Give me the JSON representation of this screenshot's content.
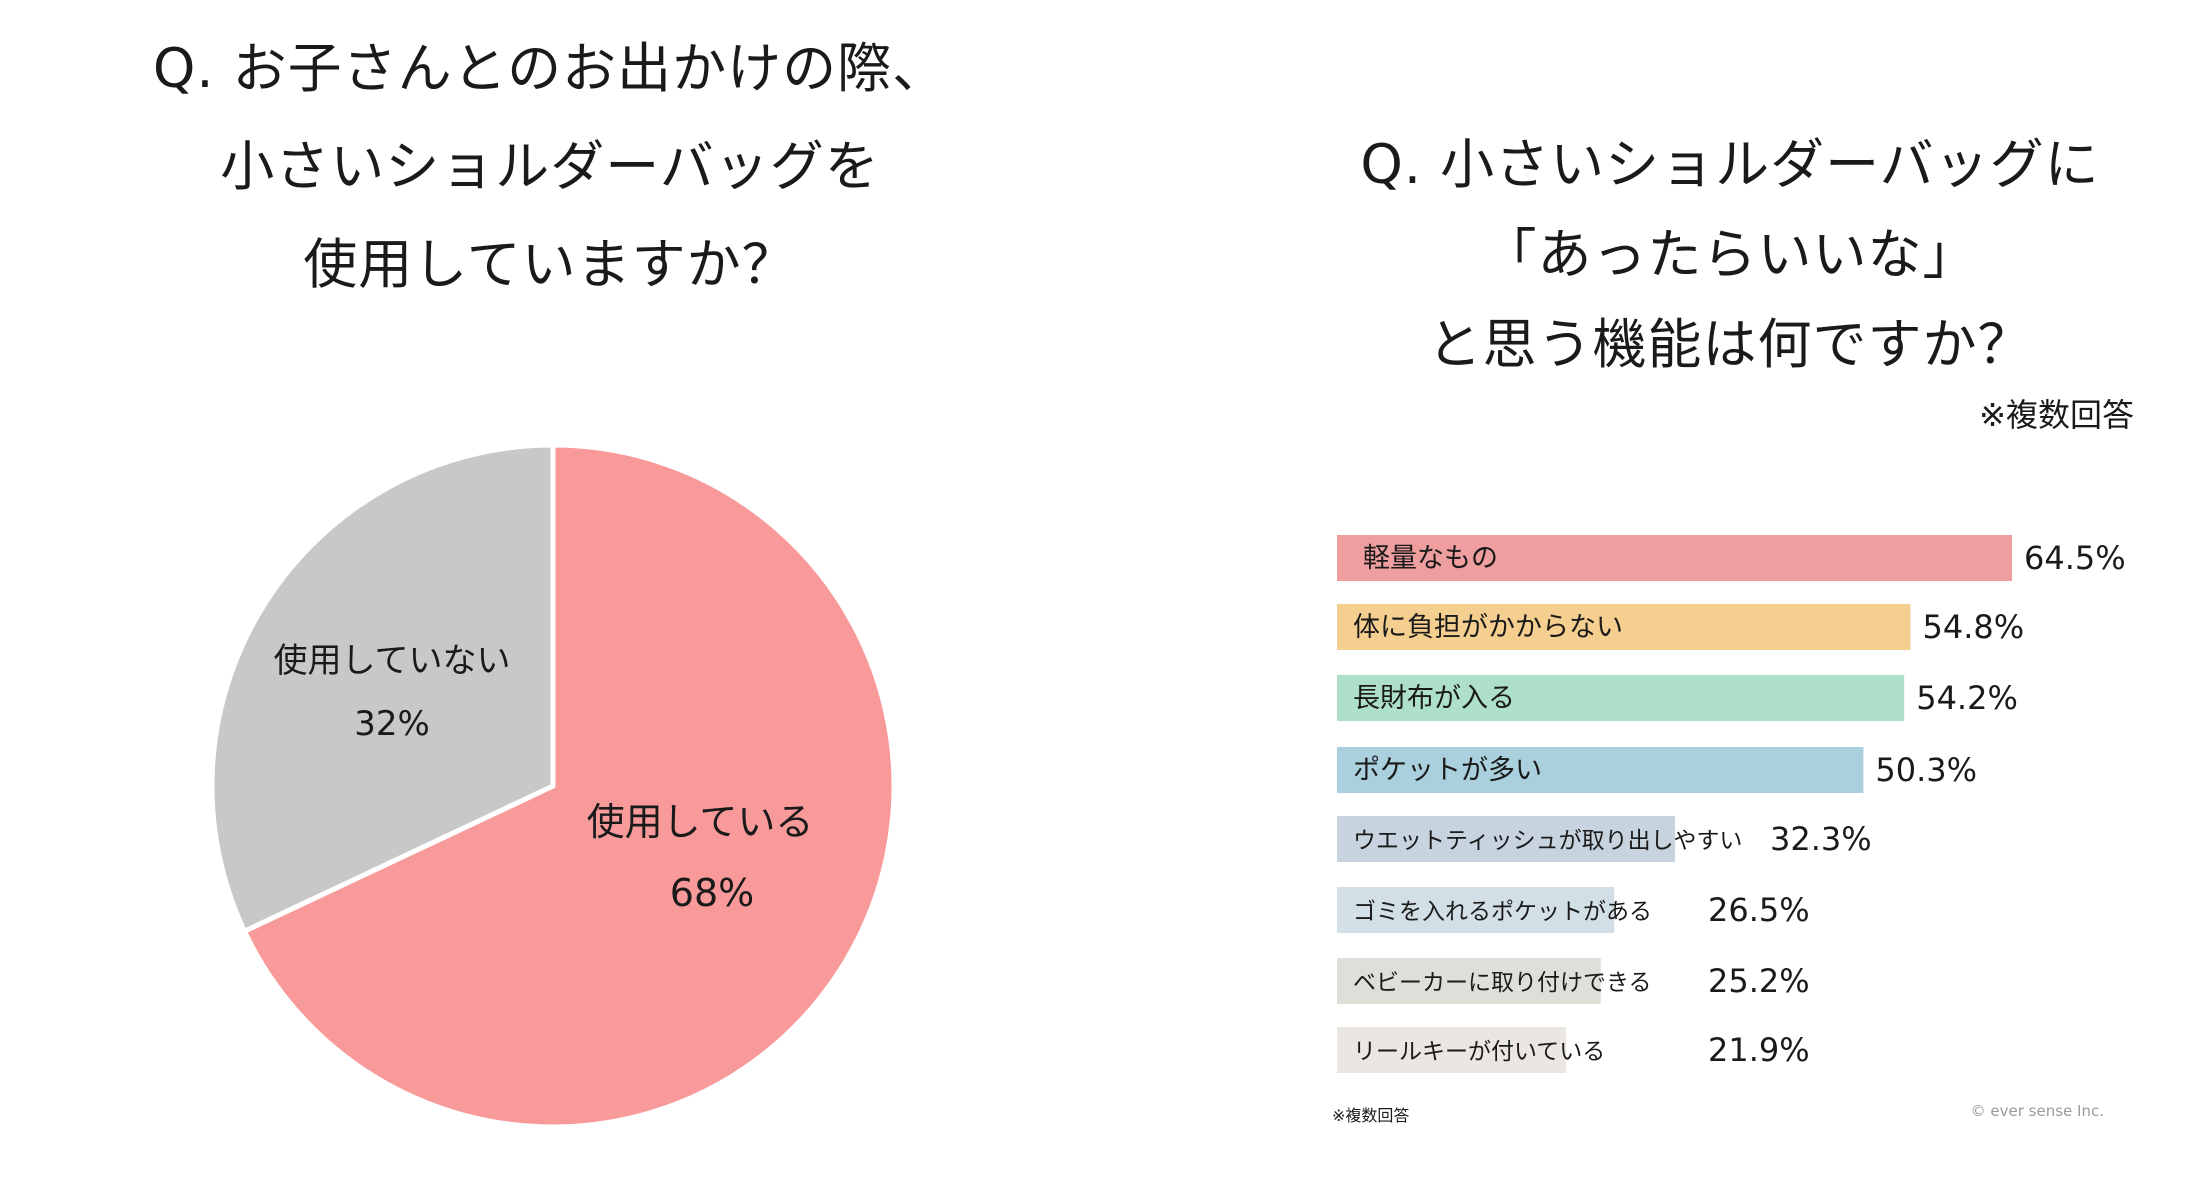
{
  "chart_data": [
    {
      "type": "pie",
      "title": [
        "Q. お子さんとのお出かけの際、",
        "小さいショルダーバッグを",
        "使用していますか？"
      ],
      "slices": [
        {
          "label": "使用している",
          "value": 68,
          "display": "68%",
          "color": "#F99A9A"
        },
        {
          "label": "使用していない",
          "value": 32,
          "display": "32%",
          "color": "#C8C8C8"
        }
      ]
    },
    {
      "type": "bar",
      "orientation": "horizontal",
      "title": [
        "Q. 小さいショルダーバッグに",
        "「あったらいいな」",
        "と思う機能は何ですか？"
      ],
      "note": "※複数回答",
      "footnote": "※複数回答",
      "copyright": "© ever sense Inc.",
      "unit": "%",
      "categories": [
        "軽量なもの",
        "体に負担がかからない",
        "長財布が入る",
        "ポケットが多い",
        "ウエットティッシュが取り出しやすい",
        "ゴミを入れるポケットがある",
        "ベビーカーに取り付けできる",
        "リールキーが付いている"
      ],
      "values": [
        64.5,
        54.8,
        54.2,
        50.3,
        32.3,
        26.5,
        25.2,
        21.9
      ],
      "labels": [
        "64.5%",
        "54.8%",
        "54.2%",
        "50.3%",
        "32.3%",
        "26.5%",
        "25.2%",
        "21.9%"
      ],
      "colors": [
        "#EE9E9E",
        "#F5CF90",
        "#AEE0C9",
        "#A9D0DC",
        "#C7D4DF",
        "#D3DFE6",
        "#DCE0D8",
        "#EAE6E1"
      ]
    }
  ]
}
